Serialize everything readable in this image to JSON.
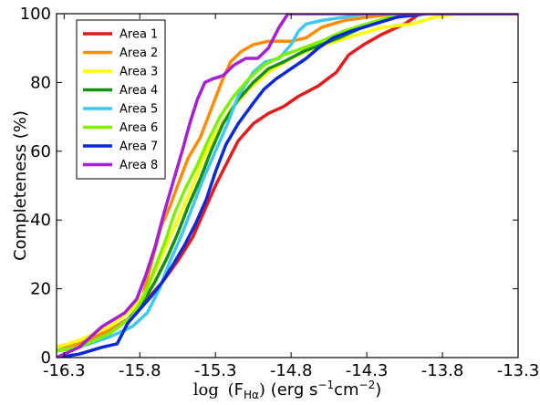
{
  "chart_data": {
    "type": "line",
    "title": "",
    "xlabel": "log (F_Hα) (erg s⁻¹cm⁻²)",
    "xlabel_parts": {
      "math_prefix": "log",
      "F": "F",
      "subscript": "Hα",
      "units_prefix": " (erg s",
      "exp1": "−1",
      "units_mid": "cm",
      "exp2": "−2",
      "units_suffix": ")"
    },
    "ylabel": "Completeness (%)",
    "xlim": [
      -16.35,
      -13.3
    ],
    "ylim": [
      0,
      100
    ],
    "x_ticks": [
      -16.3,
      -15.8,
      -15.3,
      -14.8,
      -14.3,
      -13.8,
      -13.3
    ],
    "x_tick_labels": [
      "-16.3",
      "-15.8",
      "-15.3",
      "-14.8",
      "-14.3",
      "-13.8",
      "-13.3"
    ],
    "y_ticks": [
      0,
      20,
      40,
      60,
      80,
      100
    ],
    "y_tick_labels": [
      "0",
      "20",
      "40",
      "60",
      "80",
      "100"
    ],
    "grid": false,
    "legend_position": "top-left",
    "series": [
      {
        "name": "Area 1",
        "color": "#e8191a",
        "points": [
          [
            -16.35,
            2
          ],
          [
            -16.2,
            3
          ],
          [
            -16.0,
            7
          ],
          [
            -15.85,
            12
          ],
          [
            -15.75,
            17
          ],
          [
            -15.65,
            22
          ],
          [
            -15.55,
            28
          ],
          [
            -15.45,
            35
          ],
          [
            -15.38,
            42
          ],
          [
            -15.3,
            50
          ],
          [
            -15.22,
            57
          ],
          [
            -15.15,
            63
          ],
          [
            -15.05,
            68
          ],
          [
            -14.95,
            71
          ],
          [
            -14.85,
            73
          ],
          [
            -14.75,
            76
          ],
          [
            -14.62,
            79
          ],
          [
            -14.5,
            83
          ],
          [
            -14.42,
            88
          ],
          [
            -14.32,
            91
          ],
          [
            -14.2,
            94
          ],
          [
            -14.05,
            97
          ],
          [
            -13.95,
            100
          ],
          [
            -13.3,
            100
          ]
        ]
      },
      {
        "name": "Area 2",
        "color": "#ff8c00",
        "points": [
          [
            -16.35,
            3
          ],
          [
            -16.2,
            4
          ],
          [
            -16.0,
            8
          ],
          [
            -15.85,
            12
          ],
          [
            -15.78,
            18
          ],
          [
            -15.72,
            28
          ],
          [
            -15.66,
            38
          ],
          [
            -15.6,
            44
          ],
          [
            -15.55,
            50
          ],
          [
            -15.48,
            58
          ],
          [
            -15.4,
            64
          ],
          [
            -15.33,
            72
          ],
          [
            -15.26,
            80
          ],
          [
            -15.2,
            86
          ],
          [
            -15.13,
            89
          ],
          [
            -15.05,
            91
          ],
          [
            -14.95,
            92
          ],
          [
            -14.8,
            92
          ],
          [
            -14.7,
            93
          ],
          [
            -14.6,
            96
          ],
          [
            -14.45,
            98
          ],
          [
            -14.3,
            99
          ],
          [
            -14.1,
            100
          ],
          [
            -13.3,
            100
          ]
        ]
      },
      {
        "name": "Area 3",
        "color": "#ffff00",
        "points": [
          [
            -16.35,
            3
          ],
          [
            -16.2,
            5
          ],
          [
            -16.0,
            9
          ],
          [
            -15.85,
            14
          ],
          [
            -15.75,
            20
          ],
          [
            -15.68,
            27
          ],
          [
            -15.6,
            35
          ],
          [
            -15.52,
            43
          ],
          [
            -15.45,
            50
          ],
          [
            -15.38,
            58
          ],
          [
            -15.3,
            65
          ],
          [
            -15.2,
            72
          ],
          [
            -15.08,
            78
          ],
          [
            -14.95,
            83
          ],
          [
            -14.8,
            87
          ],
          [
            -14.65,
            90
          ],
          [
            -14.5,
            92
          ],
          [
            -14.35,
            94
          ],
          [
            -14.2,
            96
          ],
          [
            -14.0,
            97
          ],
          [
            -13.85,
            99
          ],
          [
            -13.7,
            100
          ],
          [
            -13.3,
            100
          ]
        ]
      },
      {
        "name": "Area 4",
        "color": "#138f13",
        "points": [
          [
            -16.35,
            2
          ],
          [
            -16.2,
            3
          ],
          [
            -16.0,
            7
          ],
          [
            -15.88,
            11
          ],
          [
            -15.78,
            16
          ],
          [
            -15.7,
            22
          ],
          [
            -15.62,
            29
          ],
          [
            -15.55,
            36
          ],
          [
            -15.48,
            44
          ],
          [
            -15.4,
            52
          ],
          [
            -15.33,
            60
          ],
          [
            -15.25,
            68
          ],
          [
            -15.15,
            75
          ],
          [
            -15.05,
            80
          ],
          [
            -14.95,
            84
          ],
          [
            -14.85,
            86
          ],
          [
            -14.72,
            89
          ],
          [
            -14.6,
            91
          ],
          [
            -14.48,
            93
          ],
          [
            -14.38,
            95
          ],
          [
            -14.28,
            97
          ],
          [
            -14.15,
            99
          ],
          [
            -14.0,
            100
          ],
          [
            -13.3,
            100
          ]
        ]
      },
      {
        "name": "Area 5",
        "color": "#3ec8f0",
        "points": [
          [
            -16.35,
            2
          ],
          [
            -16.2,
            3
          ],
          [
            -16.0,
            6
          ],
          [
            -15.85,
            9
          ],
          [
            -15.75,
            13
          ],
          [
            -15.67,
            20
          ],
          [
            -15.6,
            28
          ],
          [
            -15.52,
            36
          ],
          [
            -15.45,
            44
          ],
          [
            -15.38,
            52
          ],
          [
            -15.3,
            60
          ],
          [
            -15.22,
            68
          ],
          [
            -15.15,
            76
          ],
          [
            -15.05,
            83
          ],
          [
            -14.97,
            86
          ],
          [
            -14.88,
            87
          ],
          [
            -14.8,
            91
          ],
          [
            -14.75,
            95
          ],
          [
            -14.7,
            97
          ],
          [
            -14.6,
            98
          ],
          [
            -14.45,
            99
          ],
          [
            -14.3,
            100
          ],
          [
            -13.3,
            100
          ]
        ]
      },
      {
        "name": "Area 6",
        "color": "#7ff000",
        "points": [
          [
            -16.35,
            2
          ],
          [
            -16.2,
            3
          ],
          [
            -16.0,
            7
          ],
          [
            -15.85,
            12
          ],
          [
            -15.77,
            18
          ],
          [
            -15.7,
            26
          ],
          [
            -15.63,
            34
          ],
          [
            -15.57,
            42
          ],
          [
            -15.5,
            49
          ],
          [
            -15.42,
            56
          ],
          [
            -15.35,
            63
          ],
          [
            -15.27,
            70
          ],
          [
            -15.18,
            76
          ],
          [
            -15.08,
            81
          ],
          [
            -14.98,
            85
          ],
          [
            -14.85,
            88
          ],
          [
            -14.72,
            90
          ],
          [
            -14.6,
            92
          ],
          [
            -14.45,
            95
          ],
          [
            -14.3,
            97
          ],
          [
            -14.15,
            99
          ],
          [
            -14.0,
            100
          ],
          [
            -13.3,
            100
          ]
        ]
      },
      {
        "name": "Area 7",
        "color": "#0a28d8",
        "points": [
          [
            -16.35,
            0
          ],
          [
            -16.2,
            1
          ],
          [
            -16.05,
            3
          ],
          [
            -15.95,
            4
          ],
          [
            -15.88,
            10
          ],
          [
            -15.8,
            14
          ],
          [
            -15.72,
            18
          ],
          [
            -15.65,
            22
          ],
          [
            -15.58,
            27
          ],
          [
            -15.5,
            33
          ],
          [
            -15.43,
            39
          ],
          [
            -15.36,
            46
          ],
          [
            -15.3,
            54
          ],
          [
            -15.23,
            62
          ],
          [
            -15.15,
            68
          ],
          [
            -15.05,
            74
          ],
          [
            -14.98,
            78
          ],
          [
            -14.9,
            81
          ],
          [
            -14.8,
            84
          ],
          [
            -14.7,
            87
          ],
          [
            -14.62,
            90
          ],
          [
            -14.52,
            93
          ],
          [
            -14.4,
            95
          ],
          [
            -14.25,
            97
          ],
          [
            -14.1,
            99
          ],
          [
            -13.9,
            100
          ],
          [
            -13.3,
            100
          ]
        ]
      },
      {
        "name": "Area 8",
        "color": "#a51fd6",
        "points": [
          [
            -16.35,
            0
          ],
          [
            -16.2,
            3
          ],
          [
            -16.05,
            9
          ],
          [
            -15.9,
            13
          ],
          [
            -15.82,
            17
          ],
          [
            -15.76,
            24
          ],
          [
            -15.7,
            32
          ],
          [
            -15.64,
            42
          ],
          [
            -15.58,
            51
          ],
          [
            -15.52,
            60
          ],
          [
            -15.47,
            68
          ],
          [
            -15.42,
            75
          ],
          [
            -15.37,
            80
          ],
          [
            -15.32,
            81
          ],
          [
            -15.25,
            82
          ],
          [
            -15.18,
            85
          ],
          [
            -15.1,
            87
          ],
          [
            -15.02,
            87
          ],
          [
            -14.95,
            90
          ],
          [
            -14.88,
            96
          ],
          [
            -14.82,
            100
          ],
          [
            -13.3,
            100
          ]
        ]
      }
    ]
  }
}
